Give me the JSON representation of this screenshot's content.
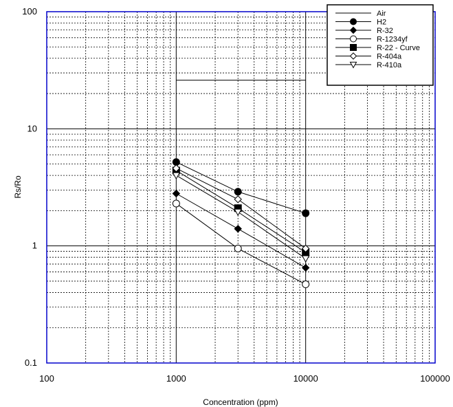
{
  "chart_data": {
    "type": "line",
    "xlabel": "Concentration (ppm)",
    "ylabel": "Rs/Ro",
    "x_scale": "log",
    "y_scale": "log",
    "xlim": [
      100,
      100000
    ],
    "ylim": [
      0.1,
      100
    ],
    "grid": true,
    "legend_position": "top-right",
    "x_tick_labels": [
      "100",
      "1000",
      "10000",
      "100000"
    ],
    "y_tick_labels": [
      "0.1",
      "1",
      "10",
      "100"
    ],
    "series": [
      {
        "name": "Air",
        "marker": "none",
        "x": [
          1000,
          10000
        ],
        "y": [
          26,
          26
        ]
      },
      {
        "name": "H2",
        "marker": "filled-circle",
        "x": [
          1000,
          3000,
          10000
        ],
        "y": [
          5.2,
          2.9,
          1.9
        ]
      },
      {
        "name": "R-32",
        "marker": "filled-diamond",
        "x": [
          1000,
          3000,
          10000
        ],
        "y": [
          2.8,
          1.4,
          0.65
        ]
      },
      {
        "name": "R-1234yf",
        "marker": "open-circle",
        "x": [
          1000,
          3000,
          10000
        ],
        "y": [
          2.3,
          0.95,
          0.47
        ]
      },
      {
        "name": "R-22 - Curve",
        "marker": "filled-square",
        "x": [
          1000,
          3000,
          10000
        ],
        "y": [
          4.4,
          2.1,
          0.88
        ]
      },
      {
        "name": "R-404a",
        "marker": "open-diamond",
        "x": [
          1000,
          3000,
          10000
        ],
        "y": [
          4.6,
          2.5,
          0.95
        ]
      },
      {
        "name": "R-410a",
        "marker": "open-triangle-down",
        "x": [
          1000,
          3000,
          10000
        ],
        "y": [
          4.0,
          1.95,
          0.78
        ]
      }
    ],
    "colors": {
      "axis": "#0000cc",
      "grid": "#000000",
      "series": "#000000"
    }
  }
}
